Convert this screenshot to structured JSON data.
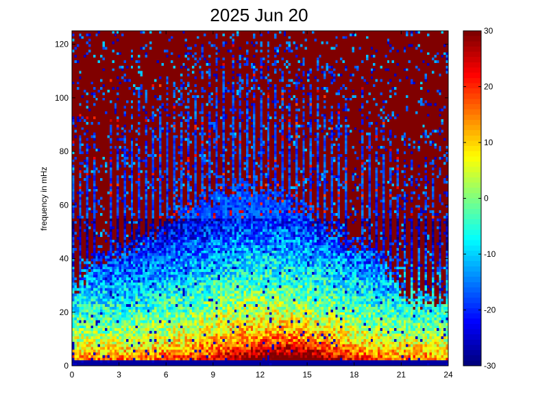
{
  "chart_data": {
    "type": "heatmap",
    "title": "2025 Jun 20",
    "xlabel": "",
    "ylabel": "frequency in mHz",
    "xlim": [
      0,
      24
    ],
    "ylim": [
      0,
      125
    ],
    "x_ticks": [
      "0",
      "3",
      "6",
      "9",
      "12",
      "15",
      "18",
      "21",
      "24"
    ],
    "y_ticks": [
      "0",
      "20",
      "40",
      "60",
      "80",
      "100",
      "120"
    ],
    "colorbar": {
      "colormap": "jet",
      "clim": [
        -30,
        30
      ],
      "ticks": [
        "-30",
        "-20",
        "-10",
        "0",
        "10",
        "20",
        "30"
      ]
    },
    "grid": false,
    "description_of_values": {
      "cells_x": 160,
      "cells_y": 125,
      "pattern": "high power (red) near 0-10 mHz peaking around hours 12-16; moderate (yellow/cyan) up to 40-60 mHz in hours 0-20; low (blue) streaks to 125 mHz in hours 2-20; saturated background (dark red) at high frequencies early and late in day"
    }
  }
}
